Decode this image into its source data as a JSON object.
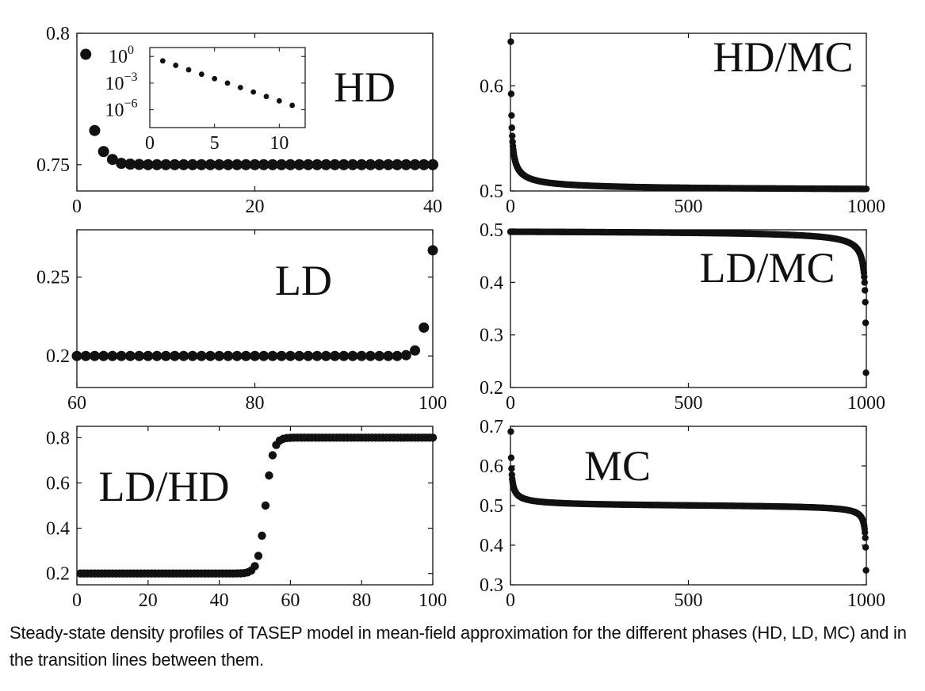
{
  "caption": "Steady-state density profiles of TASEP model in mean-field approximation for the different phases (HD, LD, MC) and in the transition lines between them.",
  "chart_data": [
    {
      "id": "hd",
      "type": "scatter",
      "label": "HD",
      "xlim": [
        0,
        40
      ],
      "ylim": [
        0.74,
        0.8
      ],
      "xticks": [
        0,
        20,
        40
      ],
      "yticks": [
        0.75,
        0.8
      ],
      "xtick_labels": [
        "0",
        "20",
        "40"
      ],
      "ytick_labels": [
        "0.75",
        "0.8"
      ],
      "x": [
        1,
        2,
        3,
        4,
        5,
        6,
        7,
        8,
        9,
        10,
        11,
        12,
        13,
        14,
        15,
        16,
        17,
        18,
        19,
        20,
        21,
        22,
        23,
        24,
        25,
        26,
        27,
        28,
        29,
        30,
        31,
        32,
        33,
        34,
        35,
        36,
        37,
        38,
        39,
        40
      ],
      "y": [
        0.792,
        0.763,
        0.755,
        0.752,
        0.7505,
        0.7502,
        0.7501,
        0.75,
        0.75,
        0.75,
        0.75,
        0.75,
        0.75,
        0.75,
        0.75,
        0.75,
        0.75,
        0.75,
        0.75,
        0.75,
        0.75,
        0.75,
        0.75,
        0.75,
        0.75,
        0.75,
        0.75,
        0.75,
        0.75,
        0.75,
        0.75,
        0.75,
        0.75,
        0.75,
        0.75,
        0.75,
        0.75,
        0.75,
        0.75,
        0.75
      ],
      "inset": {
        "type": "scatter",
        "yscale": "log",
        "xlim": [
          0,
          12
        ],
        "ylim_exp": [
          -8,
          1
        ],
        "xticks": [
          0,
          5,
          10
        ],
        "xtick_labels": [
          "0",
          "5",
          "10"
        ],
        "ytick_exponents": [
          0,
          -3,
          -6
        ],
        "ytick_base": "10",
        "ytick_sup": [
          "0",
          "−3",
          "−6"
        ],
        "x": [
          1,
          2,
          3,
          4,
          5,
          6,
          7,
          8,
          9,
          10,
          11
        ],
        "log10_y": [
          -0.5,
          -1.0,
          -1.5,
          -2.0,
          -2.5,
          -3.0,
          -3.5,
          -4.0,
          -4.5,
          -5.0,
          -5.5
        ]
      }
    },
    {
      "id": "hdmc",
      "type": "scatter",
      "label": "HD/MC",
      "xlim": [
        0,
        1000
      ],
      "ylim": [
        0.5,
        0.65
      ],
      "xticks": [
        0,
        500,
        1000
      ],
      "yticks": [
        0.5,
        0.6
      ],
      "xtick_labels": [
        "0",
        "500",
        "1000"
      ],
      "ytick_labels": [
        "0.5",
        "0.6"
      ],
      "profile": "hdmc"
    },
    {
      "id": "ld",
      "type": "scatter",
      "label": "LD",
      "xlim": [
        60,
        100
      ],
      "ylim": [
        0.18,
        0.28
      ],
      "xticks": [
        60,
        80,
        100
      ],
      "yticks": [
        0.2,
        0.25
      ],
      "xtick_labels": [
        "60",
        "80",
        "100"
      ],
      "ytick_labels": [
        "0.2",
        "0.25"
      ],
      "x": [
        60,
        61,
        62,
        63,
        64,
        65,
        66,
        67,
        68,
        69,
        70,
        71,
        72,
        73,
        74,
        75,
        76,
        77,
        78,
        79,
        80,
        81,
        82,
        83,
        84,
        85,
        86,
        87,
        88,
        89,
        90,
        91,
        92,
        93,
        94,
        95,
        96,
        97,
        98,
        99,
        100
      ],
      "y": [
        0.2,
        0.2,
        0.2,
        0.2,
        0.2,
        0.2,
        0.2,
        0.2,
        0.2,
        0.2,
        0.2,
        0.2,
        0.2,
        0.2,
        0.2,
        0.2,
        0.2,
        0.2,
        0.2,
        0.2,
        0.2,
        0.2,
        0.2,
        0.2,
        0.2,
        0.2,
        0.2,
        0.2,
        0.2,
        0.2,
        0.2,
        0.2,
        0.2,
        0.2,
        0.2,
        0.2,
        0.2,
        0.2005,
        0.2035,
        0.218,
        0.267
      ]
    },
    {
      "id": "ldmc",
      "type": "scatter",
      "label": "LD/MC",
      "xlim": [
        0,
        1000
      ],
      "ylim": [
        0.2,
        0.5
      ],
      "xticks": [
        0,
        500,
        1000
      ],
      "yticks": [
        0.2,
        0.3,
        0.4,
        0.5
      ],
      "xtick_labels": [
        "0",
        "500",
        "1000"
      ],
      "ytick_labels": [
        "0.2",
        "0.3",
        "0.4",
        "0.5"
      ],
      "profile": "ldmc"
    },
    {
      "id": "ldhd",
      "type": "scatter",
      "label": "LD/HD",
      "xlim": [
        0,
        100
      ],
      "ylim": [
        0.15,
        0.85
      ],
      "xticks": [
        0,
        20,
        40,
        60,
        80,
        100
      ],
      "yticks": [
        0.2,
        0.4,
        0.6,
        0.8
      ],
      "xtick_labels": [
        "0",
        "20",
        "40",
        "60",
        "80",
        "100"
      ],
      "ytick_labels": [
        "0.2",
        "0.4",
        "0.6",
        "0.8"
      ],
      "profile": "ldhd"
    },
    {
      "id": "mc",
      "type": "scatter",
      "label": "MC",
      "xlim": [
        0,
        1000
      ],
      "ylim": [
        0.3,
        0.7
      ],
      "xticks": [
        0,
        500,
        1000
      ],
      "yticks": [
        0.3,
        0.4,
        0.5,
        0.6,
        0.7
      ],
      "xtick_labels": [
        "0",
        "500",
        "1000"
      ],
      "ytick_labels": [
        "0.3",
        "0.4",
        "0.5",
        "0.6",
        "0.7"
      ],
      "profile": "mc"
    }
  ]
}
